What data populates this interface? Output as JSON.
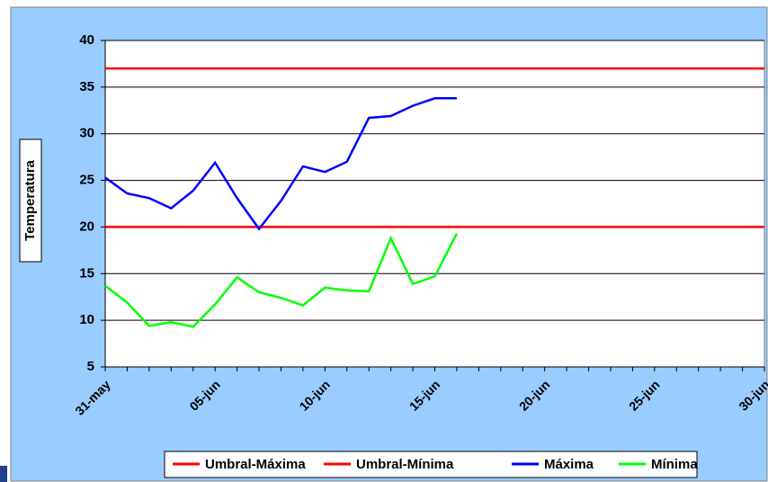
{
  "chart_data": {
    "type": "line",
    "y_label": "Temperatura",
    "categories": [
      "31-may",
      null,
      null,
      null,
      null,
      "05-jun",
      null,
      null,
      null,
      null,
      "10-jun",
      null,
      null,
      null,
      null,
      "15-jun",
      null,
      null,
      null,
      null,
      "20-jun",
      null,
      null,
      null,
      null,
      "25-jun",
      null,
      null,
      null,
      null,
      "30-jun"
    ],
    "series": [
      {
        "name": "Umbral-Máxima",
        "color": "#ff0000",
        "values": [
          37,
          37,
          37,
          37,
          37,
          37,
          37,
          37,
          37,
          37,
          37,
          37,
          37,
          37,
          37,
          37,
          37,
          37,
          37,
          37,
          37,
          37,
          37,
          37,
          37,
          37,
          37,
          37,
          37,
          37,
          37
        ]
      },
      {
        "name": "Umbral-Mínima",
        "color": "#ff0000",
        "values": [
          20,
          20,
          20,
          20,
          20,
          20,
          20,
          20,
          20,
          20,
          20,
          20,
          20,
          20,
          20,
          20,
          20,
          20,
          20,
          20,
          20,
          20,
          20,
          20,
          20,
          20,
          20,
          20,
          20,
          20,
          20
        ]
      },
      {
        "name": "Máxima",
        "color": "#0000ff",
        "values": [
          25.3,
          23.6,
          23.1,
          22.0,
          23.9,
          26.9,
          23.1,
          19.8,
          22.8,
          26.5,
          25.9,
          27.0,
          31.7,
          31.9,
          33.0,
          33.8,
          33.8,
          null,
          null,
          null,
          null,
          null,
          null,
          null,
          null,
          null,
          null,
          null,
          null,
          null,
          null
        ]
      },
      {
        "name": "Mínima",
        "color": "#00ff00",
        "values": [
          13.7,
          11.9,
          9.4,
          9.8,
          9.3,
          11.7,
          14.6,
          13.0,
          12.4,
          11.6,
          13.5,
          13.2,
          13.1,
          18.8,
          13.9,
          14.7,
          19.3,
          null,
          null,
          null,
          null,
          null,
          null,
          null,
          null,
          null,
          null,
          null,
          null,
          null,
          null
        ]
      }
    ],
    "ylim": [
      5,
      40
    ],
    "yticks": [
      5,
      10,
      15,
      20,
      25,
      30,
      35,
      40
    ],
    "grid": true,
    "legend": "bottom"
  }
}
